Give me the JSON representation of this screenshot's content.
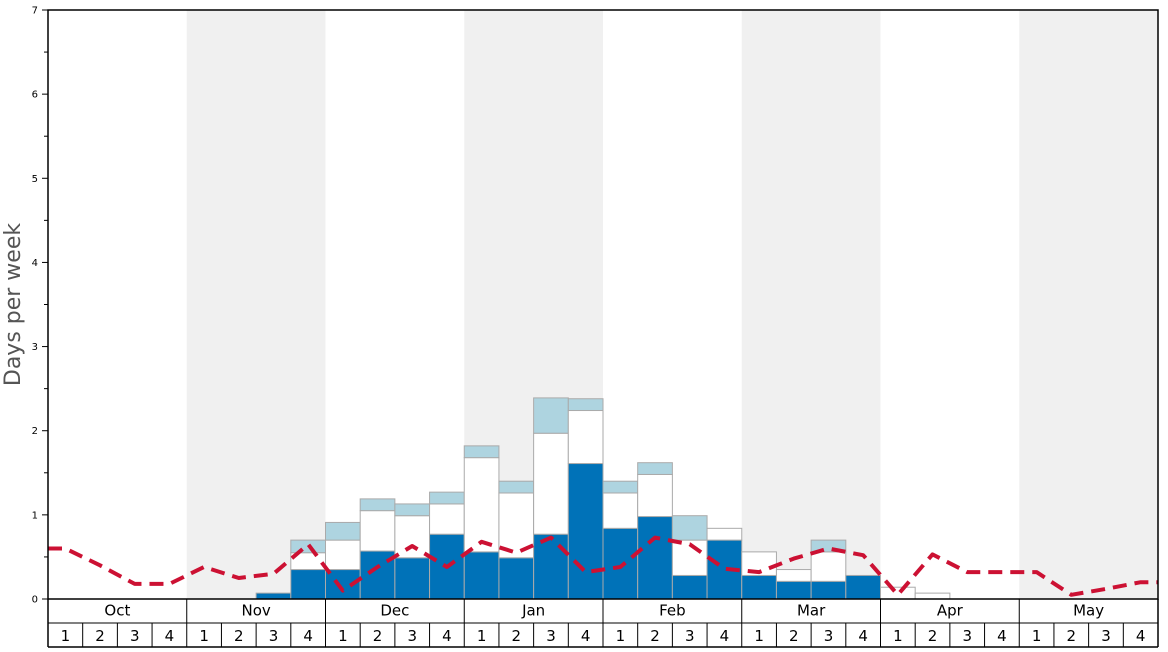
{
  "chart_data": {
    "type": "bar",
    "ylabel": "Days per week",
    "ylim": [
      0,
      7
    ],
    "yticks": [
      "0",
      "1",
      "2",
      "3",
      "4",
      "5",
      "6",
      "7"
    ],
    "months": [
      "Oct",
      "Nov",
      "Dec",
      "Jan",
      "Feb",
      "Mar",
      "Apr",
      "May"
    ],
    "week_labels": [
      "1",
      "2",
      "3",
      "4"
    ],
    "colors": {
      "dark": "#0072b8",
      "white": "#ffffff",
      "light": "#aed4e0",
      "line": "#cc1133",
      "shade": "#f0f0f0",
      "border": "#aaaaaa"
    },
    "weeks": [
      {
        "month": "Oct",
        "week": "1",
        "dark": 0,
        "white": 0,
        "light": 0,
        "line": 0.6
      },
      {
        "month": "Oct",
        "week": "2",
        "dark": 0,
        "white": 0,
        "light": 0,
        "line": 0.4
      },
      {
        "month": "Oct",
        "week": "3",
        "dark": 0,
        "white": 0,
        "light": 0,
        "line": 0.18
      },
      {
        "month": "Oct",
        "week": "4",
        "dark": 0,
        "white": 0,
        "light": 0,
        "line": 0.18
      },
      {
        "month": "Nov",
        "week": "1",
        "dark": 0,
        "white": 0,
        "light": 0,
        "line": 0.38
      },
      {
        "month": "Nov",
        "week": "2",
        "dark": 0,
        "white": 0,
        "light": 0,
        "line": 0.25
      },
      {
        "month": "Nov",
        "week": "3",
        "dark": 0.07,
        "white": 0,
        "light": 0,
        "line": 0.3
      },
      {
        "month": "Nov",
        "week": "4",
        "dark": 0.35,
        "white": 0.2,
        "light": 0.15,
        "line": 0.65
      },
      {
        "month": "Dec",
        "week": "1",
        "dark": 0.35,
        "white": 0.35,
        "light": 0.21,
        "line": 0.1
      },
      {
        "month": "Dec",
        "week": "2",
        "dark": 0.57,
        "white": 0.48,
        "light": 0.14,
        "line": 0.38
      },
      {
        "month": "Dec",
        "week": "3",
        "dark": 0.49,
        "white": 0.5,
        "light": 0.14,
        "line": 0.63
      },
      {
        "month": "Dec",
        "week": "4",
        "dark": 0.77,
        "white": 0.36,
        "light": 0.14,
        "line": 0.38
      },
      {
        "month": "Jan",
        "week": "1",
        "dark": 0.56,
        "white": 1.12,
        "light": 0.14,
        "line": 0.68
      },
      {
        "month": "Jan",
        "week": "2",
        "dark": 0.49,
        "white": 0.77,
        "light": 0.14,
        "line": 0.55
      },
      {
        "month": "Jan",
        "week": "3",
        "dark": 0.77,
        "white": 1.2,
        "light": 0.42,
        "line": 0.73
      },
      {
        "month": "Jan",
        "week": "4",
        "dark": 1.61,
        "white": 0.63,
        "light": 0.14,
        "line": 0.32
      },
      {
        "month": "Feb",
        "week": "1",
        "dark": 0.84,
        "white": 0.42,
        "light": 0.14,
        "line": 0.38
      },
      {
        "month": "Feb",
        "week": "2",
        "dark": 0.98,
        "white": 0.5,
        "light": 0.14,
        "line": 0.73
      },
      {
        "month": "Feb",
        "week": "3",
        "dark": 0.28,
        "white": 0.42,
        "light": 0.29,
        "line": 0.65
      },
      {
        "month": "Feb",
        "week": "4",
        "dark": 0.7,
        "white": 0.14,
        "light": 0,
        "line": 0.36
      },
      {
        "month": "Mar",
        "week": "1",
        "dark": 0.28,
        "white": 0.28,
        "light": 0,
        "line": 0.32
      },
      {
        "month": "Mar",
        "week": "2",
        "dark": 0.21,
        "white": 0.14,
        "light": 0,
        "line": 0.48
      },
      {
        "month": "Mar",
        "week": "3",
        "dark": 0.21,
        "white": 0.35,
        "light": 0.14,
        "line": 0.6
      },
      {
        "month": "Mar",
        "week": "4",
        "dark": 0.28,
        "white": 0,
        "light": 0,
        "line": 0.52
      },
      {
        "month": "Apr",
        "week": "1",
        "dark": 0,
        "white": 0.14,
        "light": 0,
        "line": 0.05
      },
      {
        "month": "Apr",
        "week": "2",
        "dark": 0,
        "white": 0.07,
        "light": 0,
        "line": 0.53
      },
      {
        "month": "Apr",
        "week": "3",
        "dark": 0,
        "white": 0,
        "light": 0,
        "line": 0.32
      },
      {
        "month": "Apr",
        "week": "4",
        "dark": 0,
        "white": 0,
        "light": 0,
        "line": 0.32
      },
      {
        "month": "May",
        "week": "1",
        "dark": 0,
        "white": 0,
        "light": 0,
        "line": 0.32
      },
      {
        "month": "May",
        "week": "2",
        "dark": 0,
        "white": 0,
        "light": 0,
        "line": 0.05
      },
      {
        "month": "May",
        "week": "3",
        "dark": 0,
        "white": 0,
        "light": 0,
        "line": 0.12
      },
      {
        "month": "May",
        "week": "4",
        "dark": 0,
        "white": 0,
        "light": 0,
        "line": 0.2
      }
    ]
  }
}
